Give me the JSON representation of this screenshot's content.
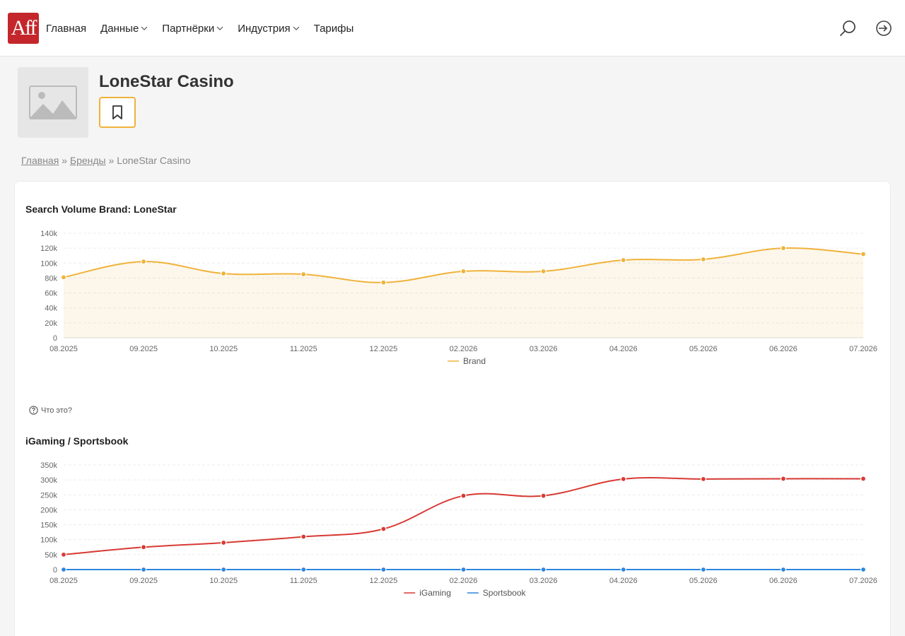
{
  "header": {
    "logo_text": "Aff",
    "nav": [
      {
        "label": "Главная",
        "dropdown": false
      },
      {
        "label": "Данные",
        "dropdown": true
      },
      {
        "label": "Партнёрки",
        "dropdown": true
      },
      {
        "label": "Индустрия",
        "dropdown": true
      },
      {
        "label": "Тарифы",
        "dropdown": false
      }
    ],
    "icons": [
      "search-icon",
      "login-icon"
    ]
  },
  "brand": {
    "title": "LoneStar Casino",
    "bookmark_icon": "bookmark-icon"
  },
  "breadcrumb": {
    "home": "Главная",
    "sep": "»",
    "brands": "Бренды",
    "current": "LoneStar Casino"
  },
  "help_text": "Что это?",
  "colors": {
    "accent": "#c4272b",
    "brand_series": "#f0b23a",
    "igaming_series": "#d83a34",
    "sportsbook_series": "#2e86de"
  },
  "chart_data": [
    {
      "type": "area",
      "title": "Search Volume Brand: LoneStar",
      "categories": [
        "08.2025",
        "09.2025",
        "10.2025",
        "11.2025",
        "12.2025",
        "02.2026",
        "03.2026",
        "04.2026",
        "05.2026",
        "06.2026",
        "07.2026"
      ],
      "ylim": [
        0,
        140000
      ],
      "yticks": [
        "0",
        "20k",
        "40k",
        "60k",
        "80k",
        "100k",
        "120k",
        "140k"
      ],
      "grid": true,
      "legend": "bottom-center",
      "series": [
        {
          "name": "Brand",
          "values": [
            81000,
            102000,
            86000,
            85000,
            74000,
            89000,
            89000,
            104000,
            105000,
            120000,
            112000
          ]
        }
      ]
    },
    {
      "type": "line",
      "title": "iGaming / Sportsbook",
      "categories": [
        "08.2025",
        "09.2025",
        "10.2025",
        "11.2025",
        "12.2025",
        "02.2026",
        "03.2026",
        "04.2026",
        "05.2026",
        "06.2026",
        "07.2026"
      ],
      "ylim": [
        0,
        350000
      ],
      "yticks": [
        "0",
        "50k",
        "100k",
        "150k",
        "200k",
        "250k",
        "300k",
        "350k"
      ],
      "grid": true,
      "legend": "bottom-center",
      "series": [
        {
          "name": "iGaming",
          "values": [
            50000,
            75000,
            90000,
            110000,
            136000,
            247000,
            247000,
            303000,
            303000,
            304000,
            304000
          ]
        },
        {
          "name": "Sportsbook",
          "values": [
            0,
            0,
            0,
            0,
            0,
            0,
            0,
            0,
            0,
            0,
            0
          ]
        }
      ]
    }
  ]
}
